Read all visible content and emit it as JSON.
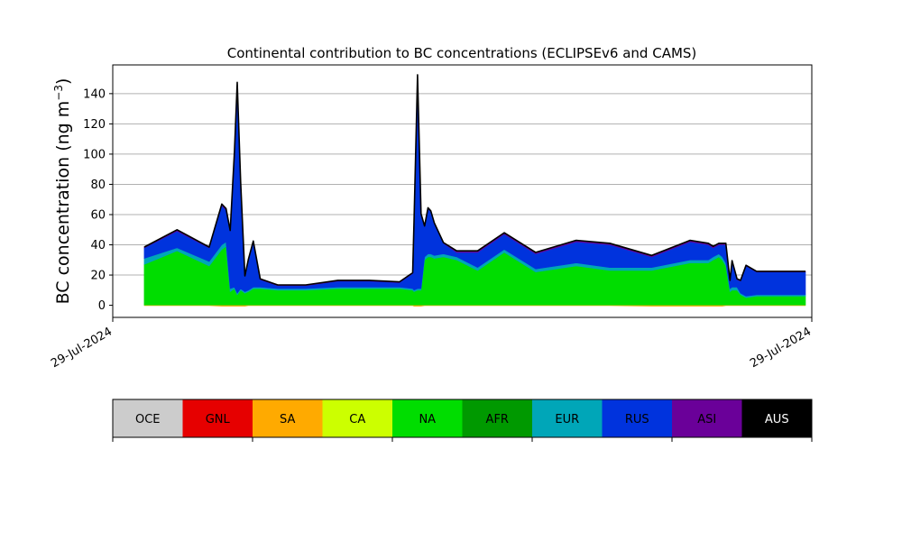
{
  "chart_data": {
    "type": "area",
    "title": "Continental contribution to BC concentrations (ECLIPSEv6 and CAMS)",
    "ylabel": "BC concentration (ng m",
    "ylabel_sup": "−3",
    "ylabel_close": ")",
    "xlabel": "",
    "x_ticklabels": [
      "29-Jul-2024",
      "29-Jul-2024"
    ],
    "y_ticks": [
      0,
      20,
      40,
      60,
      80,
      100,
      120,
      140
    ],
    "ylim": [
      -8,
      159
    ],
    "xlim": [
      0,
      100
    ],
    "grid": "horizontal",
    "x": [
      4.5,
      9.2,
      13.8,
      15.6,
      16.2,
      16.8,
      17.4,
      17.8,
      18.3,
      18.9,
      19.4,
      20.1,
      21.1,
      23.6,
      27.6,
      32.2,
      36.7,
      41.0,
      42.9,
      43.1,
      43.6,
      44.1,
      44.6,
      45.1,
      45.5,
      46.0,
      47.3,
      49.2,
      52.2,
      56.0,
      60.5,
      66.3,
      71.1,
      77.1,
      82.6,
      85.2,
      85.9,
      86.7,
      87.2,
      87.7,
      88.3,
      88.6,
      89.3,
      89.8,
      90.6,
      92.1,
      95.3,
      99.1
    ],
    "series": [
      {
        "name": "NA",
        "color": "#00dd00",
        "values": [
          27,
          36,
          26,
          37,
          39,
          9,
          11,
          7,
          10,
          8,
          9,
          11,
          11,
          10,
          10,
          11,
          11,
          11,
          10,
          9,
          10,
          10,
          30,
          32,
          32,
          31,
          32,
          30,
          23,
          35,
          22,
          26,
          23,
          23,
          28,
          28,
          30,
          32,
          30,
          26,
          9,
          10,
          10,
          7,
          5,
          6,
          6,
          6
        ]
      },
      {
        "name": "EUR",
        "color": "#00a6b8",
        "values": [
          4,
          2,
          3,
          3,
          3,
          2,
          1,
          1,
          1,
          1,
          1,
          1,
          1,
          1,
          1,
          1,
          1,
          1,
          1,
          1,
          1,
          1,
          2,
          2,
          2,
          2,
          2,
          2,
          2,
          2,
          2,
          2,
          2,
          2,
          2,
          2,
          2,
          2,
          2,
          2,
          2,
          2,
          2,
          1,
          1,
          1,
          1,
          1
        ]
      },
      {
        "name": "RUS",
        "color": "#0033dd",
        "values": [
          7,
          11,
          9,
          26,
          21,
          38,
          89,
          139,
          70,
          10,
          20,
          30,
          5,
          2,
          2,
          4,
          4,
          3,
          10,
          45,
          141,
          49,
          20,
          30,
          28,
          21,
          7,
          3,
          10,
          10,
          10,
          14,
          15,
          7,
          12,
          10,
          6,
          6,
          8,
          12,
          5,
          17,
          5,
          8,
          20,
          15,
          15,
          15
        ]
      },
      {
        "name": "ASI",
        "color": "#6a0099",
        "values": [
          0.5,
          1,
          0.5,
          1,
          1,
          0.5,
          0.5,
          0.5,
          0.5,
          0.5,
          0.5,
          0.5,
          0.5,
          0.5,
          0.5,
          0.5,
          0.5,
          0.5,
          0.5,
          0.5,
          0.5,
          0.5,
          0.5,
          0.5,
          0.5,
          0.5,
          0.5,
          1,
          1,
          1,
          1,
          1,
          1,
          1,
          1,
          1,
          1,
          1,
          1,
          1,
          0.5,
          0.5,
          0.5,
          0.5,
          0.5,
          0.5,
          0.5,
          0.5
        ]
      },
      {
        "name": "SA",
        "color": "#ffaa00",
        "values": [
          -0.4,
          -0.4,
          -0.4,
          -0.8,
          -0.8,
          -0.8,
          -0.8,
          -0.8,
          -0.8,
          -0.8,
          -0.4,
          -0.4,
          -0.4,
          -0.4,
          -0.4,
          -0.4,
          -0.4,
          -0.4,
          -0.4,
          -0.8,
          -0.8,
          -0.8,
          -0.4,
          -0.4,
          -0.4,
          -0.4,
          -0.4,
          -0.4,
          -0.4,
          -0.4,
          -0.4,
          -0.4,
          -0.4,
          -0.8,
          -0.8,
          -0.8,
          -0.8,
          -0.8,
          -0.8,
          -0.4,
          -0.4,
          -0.4,
          -0.4,
          -0.4,
          -0.4,
          -0.4,
          -0.4,
          -0.4
        ]
      }
    ]
  },
  "legend": {
    "items": [
      {
        "label": "OCE",
        "color": "#cccccc",
        "text_color": "#000000"
      },
      {
        "label": "GNL",
        "color": "#e60000",
        "text_color": "#000000"
      },
      {
        "label": "SA",
        "color": "#ffaa00",
        "text_color": "#000000"
      },
      {
        "label": "CA",
        "color": "#ccff00",
        "text_color": "#000000"
      },
      {
        "label": "NA",
        "color": "#00dd00",
        "text_color": "#000000"
      },
      {
        "label": "AFR",
        "color": "#009900",
        "text_color": "#000000"
      },
      {
        "label": "EUR",
        "color": "#00a6b8",
        "text_color": "#000000"
      },
      {
        "label": "RUS",
        "color": "#0033dd",
        "text_color": "#000000"
      },
      {
        "label": "ASI",
        "color": "#6a0099",
        "text_color": "#000000"
      },
      {
        "label": "AUS",
        "color": "#000000",
        "text_color": "#ffffff"
      }
    ]
  }
}
